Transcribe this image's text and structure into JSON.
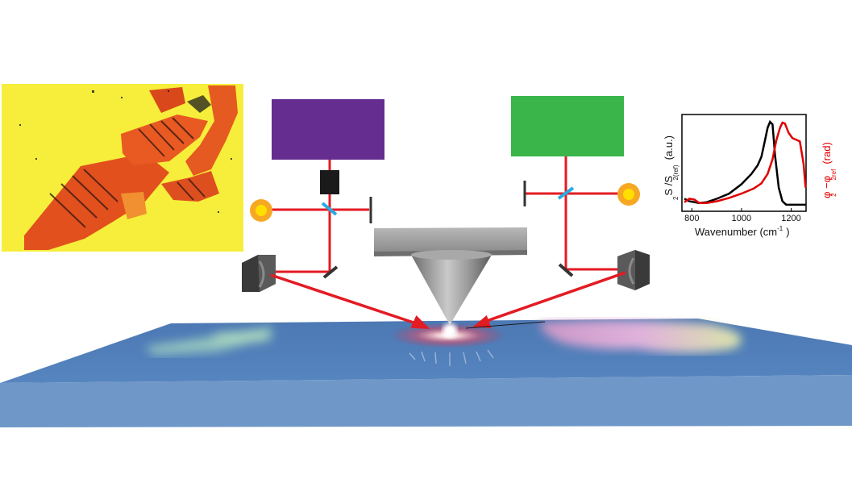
{
  "colors": {
    "laser_violet": "#662d91",
    "laser_green": "#39b54a",
    "beam": "#e31b23",
    "splitter": "#29abe2",
    "sample_top": "#4f7bb5",
    "sample_side": "#6f98c8",
    "detector": "#f7a823",
    "detector_core": "#ffde00",
    "cantilever": "#9a9a9a",
    "tip": "#8e8e8e",
    "spectrum_amplitude": "#000000",
    "spectrum_phase": "#e00000"
  },
  "icons": {
    "left_laser": "violet-laser-box",
    "right_laser": "green-laser-box",
    "left_detector": "detector-circle-icon",
    "right_detector": "detector-circle-icon",
    "left_mirror": "parabolic-mirror-icon",
    "right_mirror": "parabolic-mirror-icon",
    "modulator": "black-square-icon"
  },
  "inset_image": {
    "type": "false-color-nano-image"
  },
  "chart_data": {
    "type": "line",
    "xlabel_main": "Wavenumber (cm",
    "xlabel_sup": "-1",
    "xlabel_close": ")",
    "x_ticks": [
      "800",
      "1000",
      "1200"
    ],
    "xlim": [
      760,
      1260
    ],
    "ylabel_left_main": "S /S",
    "ylabel_left_sub1": "2",
    "ylabel_left_sub2": "2(ref)",
    "ylabel_left_unit": "(a.u.)",
    "ylabel_right_main": "φ −φ",
    "ylabel_right_sub1": "2",
    "ylabel_right_sub2": "2ref",
    "ylabel_right_unit": "(rad)",
    "ylim": [
      0,
      1
    ],
    "series": [
      {
        "color": "#000000",
        "x": [
          770,
          790,
          810,
          830,
          860,
          900,
          950,
          1000,
          1040,
          1065,
          1080,
          1095,
          1105,
          1115,
          1125,
          1135,
          1150,
          1165,
          1180,
          1200,
          1230,
          1258
        ],
        "values": [
          0.09,
          0.06,
          0.05,
          0.04,
          0.05,
          0.09,
          0.15,
          0.26,
          0.38,
          0.48,
          0.58,
          0.78,
          0.92,
          0.99,
          0.96,
          0.6,
          0.22,
          0.06,
          0.02,
          0.02,
          0.02,
          0.02
        ]
      },
      {
        "color": "#e00000",
        "x": [
          770,
          790,
          810,
          830,
          860,
          900,
          950,
          1000,
          1050,
          1080,
          1105,
          1125,
          1140,
          1155,
          1165,
          1175,
          1190,
          1205,
          1220,
          1235,
          1250,
          1258
        ],
        "values": [
          0.05,
          0.09,
          0.08,
          0.04,
          0.04,
          0.06,
          0.1,
          0.15,
          0.21,
          0.27,
          0.38,
          0.55,
          0.77,
          0.92,
          0.98,
          0.97,
          0.86,
          0.8,
          0.78,
          0.76,
          0.5,
          0.22
        ]
      }
    ]
  }
}
